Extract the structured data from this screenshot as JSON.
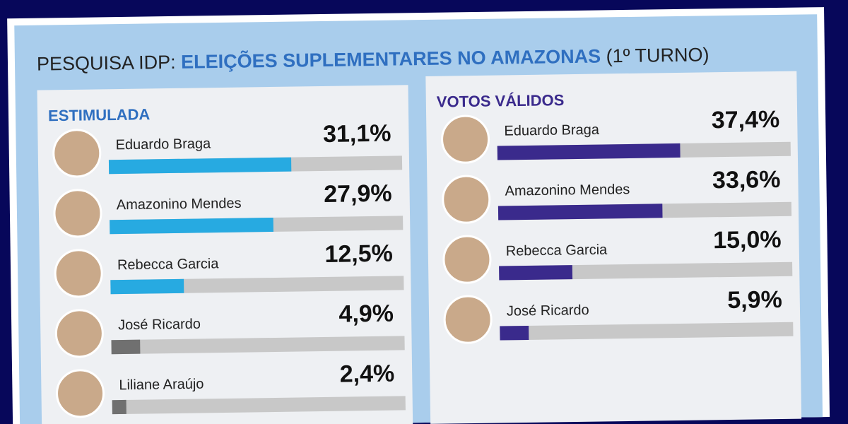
{
  "header": {
    "prefix": "PESQUISA IDP:",
    "highlight": "ELEIÇÕES SUPLEMENTARES NO AMAZONAS",
    "suffix": "(1º TURNO)"
  },
  "chart_data": [
    {
      "type": "bar",
      "title": "ESTIMULADA",
      "categories": [
        "Eduardo Braga",
        "Amazonino Mendes",
        "Rebecca Garcia",
        "José Ricardo",
        "Liliane Araújo"
      ],
      "values": [
        31.1,
        27.9,
        12.5,
        4.9,
        2.4
      ],
      "value_labels": [
        "31,1%",
        "27,9%",
        "12,5%",
        "4,9%",
        "2,4%"
      ],
      "colors": [
        "#27aae1",
        "#27aae1",
        "#27aae1",
        "#707070",
        "#707070"
      ],
      "xlim": [
        0,
        50
      ]
    },
    {
      "type": "bar",
      "title": "VOTOS VÁLIDOS",
      "categories": [
        "Eduardo Braga",
        "Amazonino Mendes",
        "Rebecca Garcia",
        "José Ricardo"
      ],
      "values": [
        37.4,
        33.6,
        15.0,
        5.9
      ],
      "value_labels": [
        "37,4%",
        "33,6%",
        "15,0%",
        "5,9%"
      ],
      "colors": [
        "#3a2a8c",
        "#3a2a8c",
        "#3a2a8c",
        "#3a2a8c"
      ],
      "xlim": [
        0,
        60
      ]
    }
  ]
}
